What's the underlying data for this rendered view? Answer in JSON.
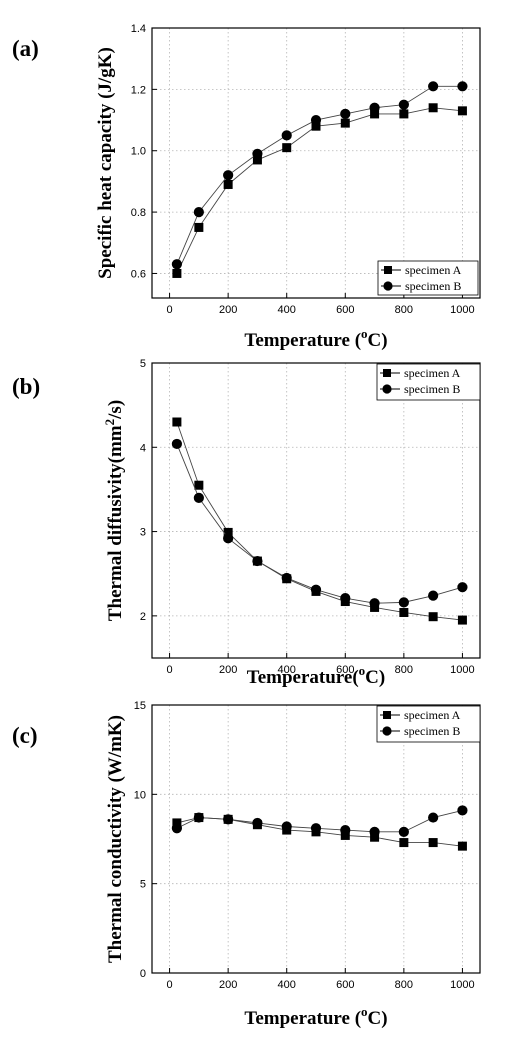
{
  "chart_data": [
    {
      "type": "line",
      "panel": "(a)",
      "ylabel": "Specific heat capacity (J/gK)",
      "xlabel_main": "Temperature (",
      "xlabel_sup": "o",
      "xlabel_end": "C)",
      "xlim": [
        -60,
        1060
      ],
      "ylim": [
        0.52,
        1.4
      ],
      "xticks": [
        0,
        200,
        400,
        600,
        800,
        1000
      ],
      "xtick_labels": [
        "0",
        "200",
        "400",
        "600",
        "800",
        "1000"
      ],
      "yticks": [
        0.6,
        0.8,
        1.0,
        1.2,
        1.4
      ],
      "ytick_labels": [
        "0.6",
        "0.8",
        "1.0",
        "1.2",
        "1.4"
      ],
      "grid": true,
      "legend": "bottom-right",
      "x": [
        25,
        100,
        200,
        300,
        400,
        500,
        600,
        700,
        800,
        900,
        1000
      ],
      "series": [
        {
          "name": "specimen A",
          "marker": "square",
          "values": [
            0.6,
            0.75,
            0.89,
            0.97,
            1.01,
            1.08,
            1.09,
            1.12,
            1.12,
            1.14,
            1.13
          ]
        },
        {
          "name": "specimen B",
          "marker": "circle",
          "values": [
            0.63,
            0.8,
            0.92,
            0.99,
            1.05,
            1.1,
            1.12,
            1.14,
            1.15,
            1.21,
            1.21
          ]
        }
      ]
    },
    {
      "type": "line",
      "panel": "(b)",
      "ylabel_main": "Thermal diffusivity(mm",
      "ylabel_sup": "2",
      "ylabel_end": "/s)",
      "xlabel_main": "Temperature(",
      "xlabel_sup": "o",
      "xlabel_end": "C)",
      "xlim": [
        -60,
        1060
      ],
      "ylim": [
        1.5,
        5
      ],
      "xticks": [
        0,
        200,
        400,
        600,
        800,
        1000
      ],
      "xtick_labels": [
        "0",
        "200",
        "400",
        "600",
        "800",
        "1000"
      ],
      "yticks": [
        2,
        3,
        4,
        5
      ],
      "ytick_labels": [
        "2",
        "3",
        "4",
        "5"
      ],
      "grid": true,
      "legend": "top-right",
      "x": [
        25,
        100,
        200,
        300,
        400,
        500,
        600,
        700,
        800,
        900,
        1000
      ],
      "series": [
        {
          "name": "specimen A",
          "marker": "square",
          "values": [
            4.3,
            3.55,
            2.99,
            2.65,
            2.44,
            2.29,
            2.17,
            2.1,
            2.04,
            1.99,
            1.95
          ]
        },
        {
          "name": "specimen B",
          "marker": "circle",
          "values": [
            4.04,
            3.4,
            2.92,
            2.65,
            2.45,
            2.31,
            2.21,
            2.15,
            2.16,
            2.24,
            2.34
          ]
        }
      ]
    },
    {
      "type": "line",
      "panel": "(c)",
      "ylabel": "Thermal conductivity (W/mK)",
      "xlabel_main": "Temperature (",
      "xlabel_sup": "o",
      "xlabel_end": "C)",
      "xlim": [
        -60,
        1060
      ],
      "ylim": [
        0,
        15
      ],
      "xticks": [
        0,
        200,
        400,
        600,
        800,
        1000
      ],
      "xtick_labels": [
        "0",
        "200",
        "400",
        "600",
        "800",
        "1000"
      ],
      "yticks": [
        0,
        5,
        10,
        15
      ],
      "ytick_labels": [
        "0",
        "5",
        "10",
        "15"
      ],
      "grid": true,
      "legend": "top-right",
      "x": [
        25,
        100,
        200,
        300,
        400,
        500,
        600,
        700,
        800,
        900,
        1000
      ],
      "series": [
        {
          "name": "specimen A",
          "marker": "square",
          "values": [
            8.4,
            8.7,
            8.6,
            8.3,
            8.0,
            7.9,
            7.7,
            7.6,
            7.3,
            7.3,
            7.1
          ]
        },
        {
          "name": "specimen B",
          "marker": "circle",
          "values": [
            8.1,
            8.7,
            8.6,
            8.4,
            8.2,
            8.1,
            8.0,
            7.9,
            7.9,
            8.7,
            9.1
          ]
        }
      ]
    }
  ]
}
